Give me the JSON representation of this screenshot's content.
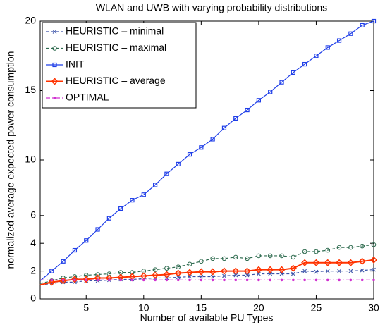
{
  "chart_data": {
    "type": "line",
    "title": "WLAN and UWB with varying probability distributions",
    "x_label": "Number of available PU Types",
    "y_label": "normalized average expected power consumption",
    "x": [
      1,
      2,
      3,
      4,
      5,
      6,
      7,
      8,
      9,
      10,
      11,
      12,
      13,
      14,
      15,
      16,
      17,
      18,
      19,
      20,
      21,
      22,
      23,
      24,
      25,
      26,
      27,
      28,
      29,
      30
    ],
    "xlim": [
      1,
      30
    ],
    "xticks": [
      5,
      10,
      15,
      20,
      25,
      30
    ],
    "ylim": [
      0,
      20
    ],
    "yticks": [
      0,
      2,
      4,
      6,
      10,
      15,
      20
    ],
    "grid": false,
    "legend": "upper left",
    "series": [
      {
        "name": "HEURISTIC – minimal",
        "color": "#3a52a8",
        "marker": "x",
        "dash": "4,3",
        "values": [
          1.0,
          1.1,
          1.2,
          1.2,
          1.3,
          1.3,
          1.35,
          1.4,
          1.4,
          1.45,
          1.5,
          1.5,
          1.55,
          1.6,
          1.6,
          1.6,
          1.65,
          1.7,
          1.7,
          1.8,
          1.8,
          1.8,
          1.8,
          2.0,
          1.95,
          2.0,
          2.0,
          2.0,
          2.05,
          2.1
        ]
      },
      {
        "name": "HEURISTIC – maximal",
        "color": "#2e6b4f",
        "marker": "o",
        "dash": "4,3",
        "values": [
          1.1,
          1.3,
          1.5,
          1.6,
          1.7,
          1.75,
          1.8,
          1.9,
          1.9,
          2.0,
          2.1,
          2.2,
          2.3,
          2.5,
          2.7,
          2.9,
          2.9,
          3.0,
          2.9,
          3.1,
          3.1,
          3.1,
          3.0,
          3.4,
          3.4,
          3.5,
          3.7,
          3.7,
          3.8,
          3.9
        ]
      },
      {
        "name": "INIT",
        "color": "#1f3ee8",
        "marker": "s",
        "dash": "none",
        "values": [
          1.3,
          2.0,
          2.7,
          3.5,
          4.2,
          5.0,
          5.8,
          6.5,
          7.1,
          7.5,
          8.2,
          9.0,
          9.7,
          10.4,
          10.9,
          11.5,
          12.3,
          13.0,
          13.6,
          14.3,
          14.9,
          15.6,
          16.3,
          16.9,
          17.5,
          18.1,
          18.6,
          19.1,
          19.7,
          20.0
        ]
      },
      {
        "name": "HEURISTIC – average",
        "color": "#ff3300",
        "marker": "d",
        "dash": "none",
        "values": [
          1.0,
          1.2,
          1.3,
          1.4,
          1.4,
          1.5,
          1.5,
          1.55,
          1.6,
          1.65,
          1.7,
          1.75,
          1.85,
          1.9,
          1.95,
          1.95,
          2.0,
          2.0,
          2.0,
          2.1,
          2.1,
          2.1,
          2.2,
          2.6,
          2.6,
          2.6,
          2.6,
          2.6,
          2.7,
          2.8
        ]
      },
      {
        "name": "OPTIMAL",
        "color": "#d030d0",
        "marker": ".",
        "dash": "6,3,2,3",
        "values": [
          1.35,
          1.35,
          1.35,
          1.35,
          1.35,
          1.35,
          1.35,
          1.35,
          1.35,
          1.35,
          1.35,
          1.35,
          1.35,
          1.35,
          1.35,
          1.35,
          1.35,
          1.35,
          1.35,
          1.35,
          1.35,
          1.35,
          1.35,
          1.35,
          1.35,
          1.35,
          1.35,
          1.35,
          1.35,
          1.35
        ]
      }
    ]
  }
}
